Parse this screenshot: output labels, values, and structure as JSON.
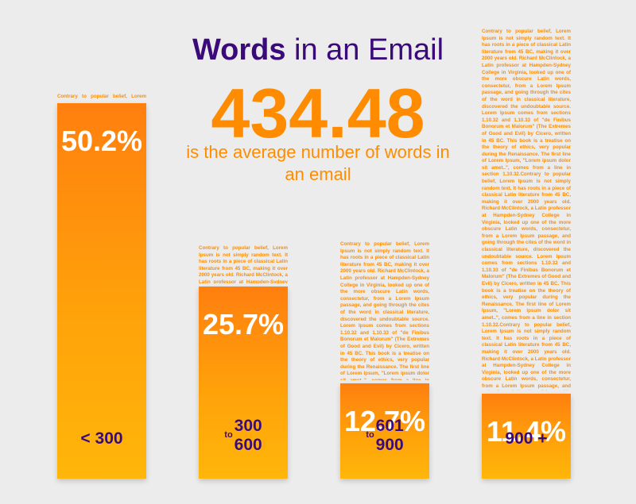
{
  "title": {
    "bold": "Words",
    "rest": " in an Email"
  },
  "headline": {
    "value": "434.48",
    "caption": "is the average number of words in an email"
  },
  "colors": {
    "accent": "#ff8c00",
    "label": "#3a0a7a",
    "background": "#ececec"
  },
  "filler_text": "Contrary to popular belief, Lorem Ipsum is not simply random text. It has roots in a piece of classical Latin literature from 45 BC, making it over 2000 years old. Richard McClintock, a Latin professor at Hampden-Sydney College in Virginia, looked up one of the more obscure Latin words, consectetur, from a Lorem Ipsum passage, and going through the cites of the word in classical literature, discovered the undoubtable source. Lorem Ipsum comes from sections 1.10.32 and 1.10.33 of \"de Finibus Bonorum et Malorum\" (The Extremes of Good and Evil) by Cicero, written in 45 BC. This book is a treatise on the theory of ethics, very popular during the Renaissance. The first line of Lorem Ipsum, \"Lorem ipsum dolor sit amet..\", comes from a line in section 1.10.32.",
  "chart_data": {
    "type": "bar",
    "categories": [
      "< 300",
      "300 to 600",
      "601 to 900",
      "900 +"
    ],
    "values": [
      50.2,
      25.7,
      12.7,
      11.4
    ],
    "value_labels": [
      "50.2%",
      "25.7%",
      "12.7%",
      "11.4%"
    ],
    "ylim": [
      0,
      50.2
    ],
    "grid": false,
    "legend": "none",
    "bars": [
      {
        "label": "< 300",
        "to": "",
        "lines": [
          "< 300"
        ],
        "value_label": "50.2%"
      },
      {
        "label": "300 to 600",
        "to": "to",
        "lines": [
          "300",
          "600"
        ],
        "value_label": "25.7%"
      },
      {
        "label": "601 to 900",
        "to": "to",
        "lines": [
          "601",
          "900"
        ],
        "value_label": "12.7%"
      },
      {
        "label": "900 +",
        "to": "",
        "lines": [
          "900 +"
        ],
        "value_label": "11.4%"
      }
    ]
  }
}
